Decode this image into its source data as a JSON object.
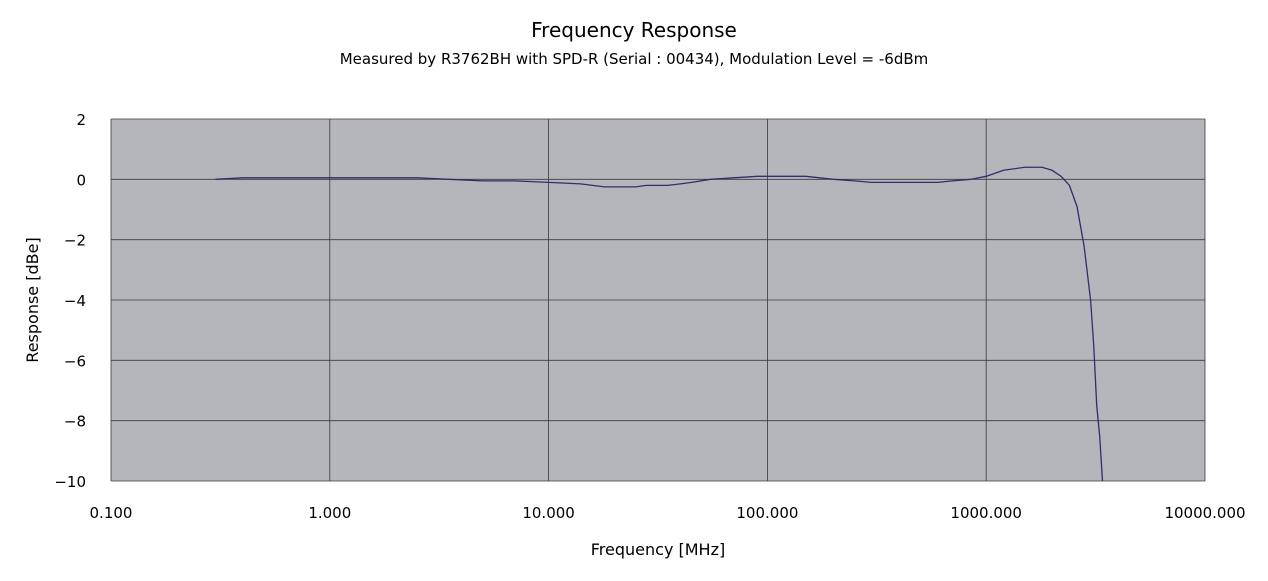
{
  "chart_data": {
    "type": "line",
    "title": "Frequency Response",
    "subtitle": "Measured by R3762BH with SPD-R (Serial : 00434), Modulation Level = -6dBm",
    "xlabel": "Frequency [MHz]",
    "ylabel": "Response [dBe]",
    "xscale": "log",
    "xlim": [
      0.1,
      10000
    ],
    "ylim": [
      -10,
      2
    ],
    "x_ticks": [
      0.1,
      1,
      10,
      100,
      1000,
      10000
    ],
    "x_tick_labels": [
      "0.100",
      "1.000",
      "10.000",
      "100.000",
      "1000.000",
      "10000.000"
    ],
    "y_ticks": [
      2,
      0,
      -2,
      -4,
      -6,
      -8,
      -10
    ],
    "y_tick_labels": [
      "2",
      "0",
      "−2",
      "−4",
      "−6",
      "−8",
      "−10"
    ],
    "grid": true,
    "legend": false,
    "colors": {
      "plot_background": "#b5b6bb",
      "line": "#2e2f6b",
      "grid": "#3a3a3a"
    },
    "series": [
      {
        "x": [
          0.3,
          0.4,
          0.6,
          1.0,
          1.5,
          2.5,
          3.5,
          5,
          7,
          10,
          14,
          18,
          25,
          28,
          35,
          40,
          45,
          55,
          70,
          90,
          120,
          150,
          200,
          250,
          300,
          400,
          500,
          600,
          700,
          850,
          1000,
          1200,
          1500,
          1800,
          2000,
          2200,
          2400,
          2600,
          2800,
          3000,
          3100,
          3200,
          3300,
          3400
        ],
        "y": [
          0.0,
          0.05,
          0.05,
          0.05,
          0.05,
          0.05,
          0.0,
          -0.05,
          -0.05,
          -0.1,
          -0.15,
          -0.25,
          -0.25,
          -0.2,
          -0.2,
          -0.15,
          -0.1,
          0.0,
          0.05,
          0.1,
          0.1,
          0.1,
          0.0,
          -0.05,
          -0.1,
          -0.1,
          -0.1,
          -0.1,
          -0.05,
          0.0,
          0.1,
          0.3,
          0.4,
          0.4,
          0.3,
          0.1,
          -0.2,
          -0.9,
          -2.2,
          -4.0,
          -5.5,
          -7.5,
          -8.5,
          -10.0
        ]
      }
    ]
  }
}
